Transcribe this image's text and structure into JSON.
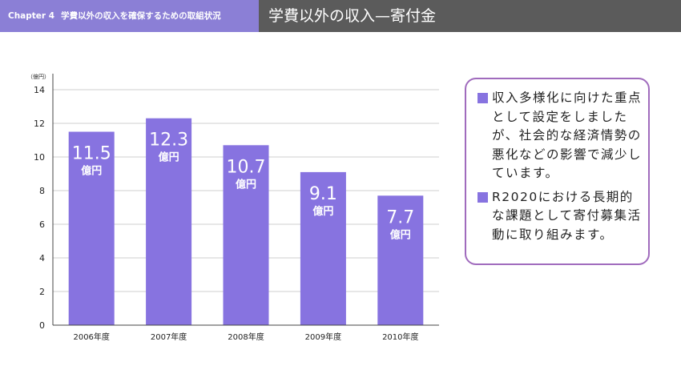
{
  "header": {
    "chapter": "Chapter 4",
    "section": "学費以外の収入を確保するための取組状況",
    "title": "学費以外の収入—寄付金"
  },
  "chart_data": {
    "type": "bar",
    "unit_label": "（億円）",
    "categories": [
      "2006年度",
      "2007年度",
      "2008年度",
      "2009年度",
      "2010年度"
    ],
    "values": [
      11.5,
      12.3,
      10.7,
      9.1,
      7.7
    ],
    "value_labels": [
      "11.5",
      "12.3",
      "10.7",
      "9.1",
      "7.7"
    ],
    "value_unit": "億円",
    "ylim": [
      0,
      14
    ],
    "yticks": [
      0,
      2,
      4,
      6,
      8,
      10,
      12,
      14
    ],
    "grid": true,
    "bar_color": "#8773e0",
    "title": "",
    "xlabel": "",
    "ylabel": ""
  },
  "callout": {
    "notes": [
      "収入多様化に向けた重点として設定をしましたが、社会的な経済情勢の悪化などの影響で減少しています。",
      "R2020における長期的な課題として寄付募集活動に取り組みます。"
    ]
  },
  "colors": {
    "header_left_bg": "#8b7fd6",
    "header_right_bg": "#5b5b5b",
    "callout_border": "#a06bbd",
    "bullet": "#8773e0"
  }
}
